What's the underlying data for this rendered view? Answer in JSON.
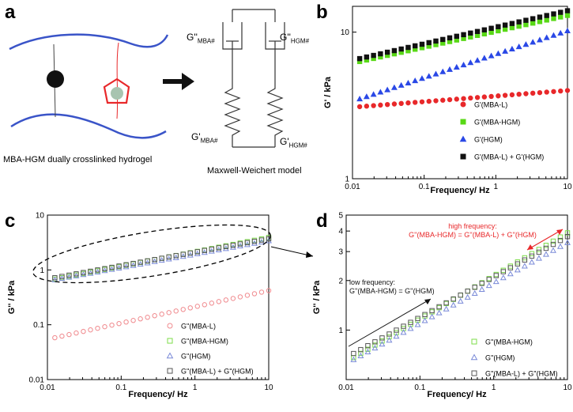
{
  "panels": {
    "a": {
      "letter": "a",
      "hydrogel_caption": "MBA-HGM dually crosslinked hydrogel",
      "model_caption": "Maxwell-Weichert model",
      "dashpot_left_main": "G''",
      "dashpot_left_sub": "MBA#",
      "dashpot_right_main": "G''",
      "dashpot_right_sub": "HGM#",
      "spring_left_main": "G'",
      "spring_left_sub": "MBA#",
      "spring_right_main": "G'",
      "spring_right_sub": "HGM#"
    },
    "b": {
      "letter": "b"
    },
    "c": {
      "letter": "c"
    },
    "d": {
      "letter": "d",
      "annot_high_1": "high frequency:",
      "annot_high_2": "G''(MBA-HGM) = G''(MBA-L) + G''(HGM)",
      "annot_low_1": "low frequency:",
      "annot_low_2": "G''(MBA-HGM) = G''(HGM)"
    }
  },
  "colors": {
    "red": "#e8282a",
    "green": "#58d816",
    "blue": "#2a48e6",
    "black": "#111111",
    "red_hollow": "#f08a8e",
    "green_hollow": "#7ddc4a",
    "blue_hollow": "#7a8ad8",
    "black_hollow": "#555555",
    "annot_red": "#e8282a",
    "strand": "#3a54c8"
  },
  "chart_data": [
    {
      "id": "b",
      "type": "scatter",
      "xscale": "log",
      "yscale": "log",
      "xlim": [
        0.01,
        10
      ],
      "ylim": [
        1,
        15
      ],
      "xlabel": "Frequency/ Hz",
      "ylabel": "G' / kPa",
      "xticks": [
        "0.01",
        "0.1",
        "1",
        "10"
      ],
      "yticks": [
        "1",
        "10"
      ],
      "legend_position": "bottom-right",
      "series": [
        {
          "name": "G'(MBA-L)",
          "legend": "G'(MBA-L)",
          "marker": "circle",
          "filled": true,
          "color": "#e8282a",
          "y_start": 3.1,
          "y_end": 4.0
        },
        {
          "name": "G'(MBA-HGM)",
          "legend": "G'(MBA-HGM)",
          "marker": "square",
          "filled": true,
          "color": "#58d816",
          "y_start": 6.3,
          "y_end": 13.0
        },
        {
          "name": "G'(HGM)",
          "legend": "G'(HGM)",
          "marker": "triangle",
          "filled": true,
          "color": "#2a48e6",
          "y_start": 3.5,
          "y_end": 10.2
        },
        {
          "name": "G'(MBA-L) + G'(HGM)",
          "legend": "G'(MBA-L) + G'(HGM)",
          "marker": "square",
          "filled": true,
          "color": "#111111",
          "y_start": 6.6,
          "y_end": 14.0
        }
      ]
    },
    {
      "id": "c",
      "type": "scatter",
      "xscale": "log",
      "yscale": "log",
      "xlim": [
        0.01,
        10
      ],
      "ylim": [
        0.01,
        10
      ],
      "xlabel": "Frequency/ Hz",
      "ylabel": "G'' / kPa",
      "xticks": [
        "0.01",
        "0.1",
        "1",
        "10"
      ],
      "yticks": [
        "0.01",
        "0.1",
        "1",
        "10"
      ],
      "legend_position": "bottom-right",
      "series": [
        {
          "name": "G''(MBA-L)",
          "legend": "G''(MBA-L)",
          "marker": "circle",
          "filled": false,
          "color": "#f08a8e",
          "y_start": 0.058,
          "y_end": 0.42
        },
        {
          "name": "G''(MBA-HGM)",
          "legend": "G''(MBA-HGM)",
          "marker": "square",
          "filled": false,
          "color": "#7ddc4a",
          "y_start": 0.68,
          "y_end": 3.9
        },
        {
          "name": "G''(HGM)",
          "legend": "G''(HGM)",
          "marker": "triangle",
          "filled": false,
          "color": "#7a8ad8",
          "y_start": 0.66,
          "y_end": 3.4
        },
        {
          "name": "G''(MBA-L) + G''(HGM)",
          "legend": "G''(MBA-L) + G''(HGM)",
          "marker": "square",
          "filled": false,
          "color": "#555555",
          "y_start": 0.72,
          "y_end": 3.7
        }
      ]
    },
    {
      "id": "d",
      "type": "scatter",
      "xscale": "log",
      "yscale": "log",
      "xlim": [
        0.01,
        10
      ],
      "ylim": [
        0.5,
        5
      ],
      "xlabel": "Frequency/ Hz",
      "ylabel": "G'' / kPa",
      "xticks": [
        "0.01",
        "0.1",
        "1",
        "10"
      ],
      "yticks": [
        "1",
        "2",
        "3",
        "4",
        "5"
      ],
      "legend_position": "bottom-right",
      "series": [
        {
          "name": "G''(MBA-HGM)",
          "legend": "G''(MBA-HGM)",
          "marker": "square",
          "filled": false,
          "color": "#7ddc4a",
          "y_start": 0.68,
          "y_end": 3.9
        },
        {
          "name": "G''(HGM)",
          "legend": "G''(HGM)",
          "marker": "triangle",
          "filled": false,
          "color": "#7a8ad8",
          "y_start": 0.66,
          "y_end": 3.4
        },
        {
          "name": "G''(MBA-L) + G''(HGM)",
          "legend": "G''(MBA-L) + G''(HGM)",
          "marker": "square",
          "filled": false,
          "color": "#555555",
          "y_start": 0.72,
          "y_end": 3.7
        }
      ]
    }
  ]
}
